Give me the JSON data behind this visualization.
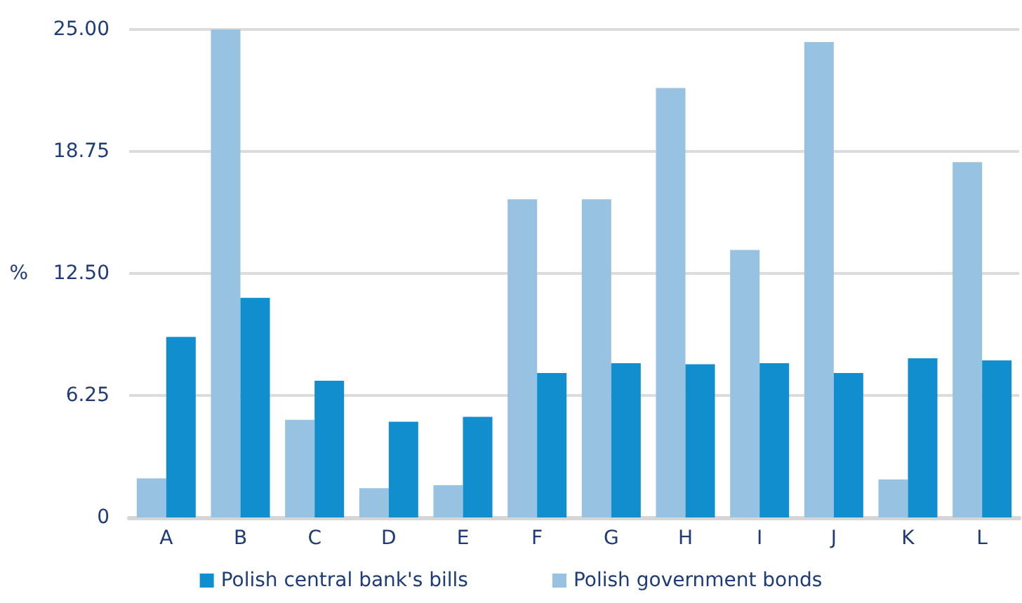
{
  "chart_data": {
    "type": "bar",
    "ylabel": "%",
    "categories": [
      "A",
      "B",
      "C",
      "D",
      "E",
      "F",
      "G",
      "H",
      "I",
      "J",
      "K",
      "L"
    ],
    "series": [
      {
        "name": "Polish government bonds",
        "color": "#98c2e2",
        "values": [
          2.0,
          25.0,
          5.0,
          1.5,
          1.65,
          16.3,
          16.3,
          22.0,
          13.7,
          24.35,
          1.95,
          18.2
        ]
      },
      {
        "name": "Polish central bank's bills",
        "color": "#118ecd",
        "values": [
          9.25,
          11.25,
          7.0,
          4.9,
          5.15,
          7.4,
          7.9,
          7.85,
          7.9,
          7.4,
          8.15,
          8.05
        ]
      }
    ],
    "ylim": [
      0,
      25
    ],
    "yticks": [
      0,
      {
        "value": 6.25,
        "label": "6.25"
      },
      {
        "value": 12.5,
        "label": "12.50"
      },
      {
        "value": 18.75,
        "label": "18.75"
      },
      {
        "value": 25,
        "label": "25.00"
      }
    ],
    "grid": "y",
    "legend": "bottom"
  }
}
